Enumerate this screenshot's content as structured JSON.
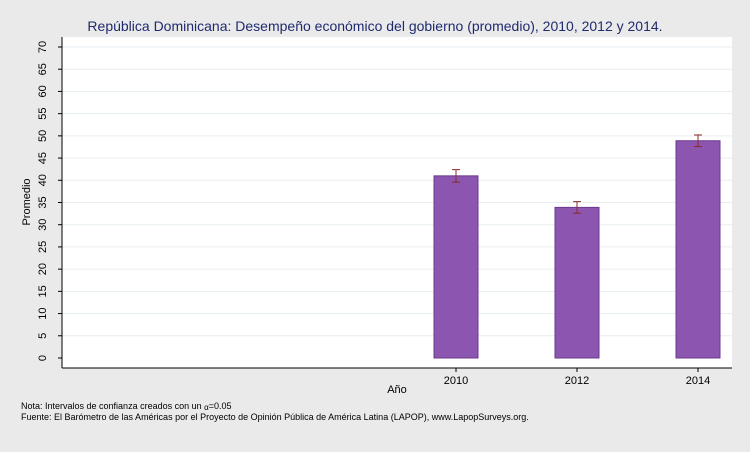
{
  "chart_data": {
    "type": "bar",
    "title": "República Dominicana: Desempeño económico del gobierno (promedio), 2010, 2012 y 2014.",
    "xlabel": "Año",
    "ylabel": "Promedio",
    "categories": [
      "2010",
      "2012",
      "2014"
    ],
    "values": [
      41.0,
      33.9,
      48.9
    ],
    "ci_low": [
      39.6,
      32.6,
      47.6
    ],
    "ci_high": [
      42.4,
      35.2,
      50.2
    ],
    "ylim": [
      0,
      70
    ],
    "yticks": [
      "0",
      "5",
      "10",
      "15",
      "20",
      "25",
      "30",
      "35",
      "40",
      "45",
      "50",
      "55",
      "60",
      "65",
      "70"
    ],
    "bar_color": "#8b55b0",
    "bar_edge_color": "#6a3a8e",
    "error_bar_color": "#8b2a2a",
    "grid": true,
    "legend": "none"
  },
  "notes": {
    "note_prefix": "Nota: Intervalos de confianza creados con un ",
    "alpha_symbol": "α",
    "note_suffix": "=0.05",
    "source": "Fuente: El Barómetro de las Américas por el Proyecto de Opinión Pública de América Latina (LAPOP), www.LapopSurveys.org."
  }
}
